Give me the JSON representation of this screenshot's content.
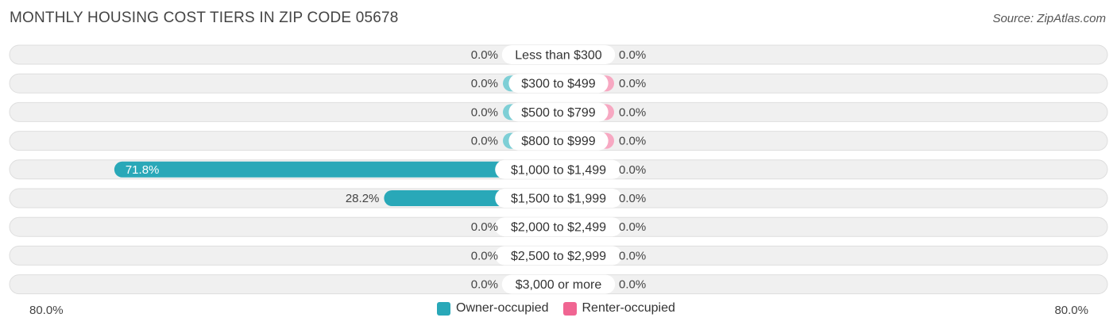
{
  "title": "MONTHLY HOUSING COST TIERS IN ZIP CODE 05678",
  "source": "Source: ZipAtlas.com",
  "colors": {
    "owner": "#29a8b8",
    "owner_light": "#7ecfd6",
    "renter": "#f06592",
    "renter_light": "#f7a8c2",
    "row_bg": "#f0f0f0",
    "row_border": "#dedede"
  },
  "legend": {
    "owner": "Owner-occupied",
    "renter": "Renter-occupied"
  },
  "chart_data": {
    "type": "bar",
    "orientation": "diverging-horizontal",
    "axis_max": 80.0,
    "axis_labels": {
      "left": "80.0%",
      "right": "80.0%"
    },
    "categories": [
      "Less than $300",
      "$300 to $499",
      "$500 to $799",
      "$800 to $999",
      "$1,000 to $1,499",
      "$1,500 to $1,999",
      "$2,000 to $2,499",
      "$2,500 to $2,999",
      "$3,000 or more"
    ],
    "series": [
      {
        "name": "Owner-occupied",
        "values": [
          0.0,
          0.0,
          0.0,
          0.0,
          71.8,
          28.2,
          0.0,
          0.0,
          0.0
        ],
        "labels": [
          "0.0%",
          "0.0%",
          "0.0%",
          "0.0%",
          "71.8%",
          "28.2%",
          "0.0%",
          "0.0%",
          "0.0%"
        ]
      },
      {
        "name": "Renter-occupied",
        "values": [
          0.0,
          0.0,
          0.0,
          0.0,
          0.0,
          0.0,
          0.0,
          0.0,
          0.0
        ],
        "labels": [
          "0.0%",
          "0.0%",
          "0.0%",
          "0.0%",
          "0.0%",
          "0.0%",
          "0.0%",
          "0.0%",
          "0.0%"
        ]
      }
    ],
    "legend_position": "bottom-center"
  }
}
